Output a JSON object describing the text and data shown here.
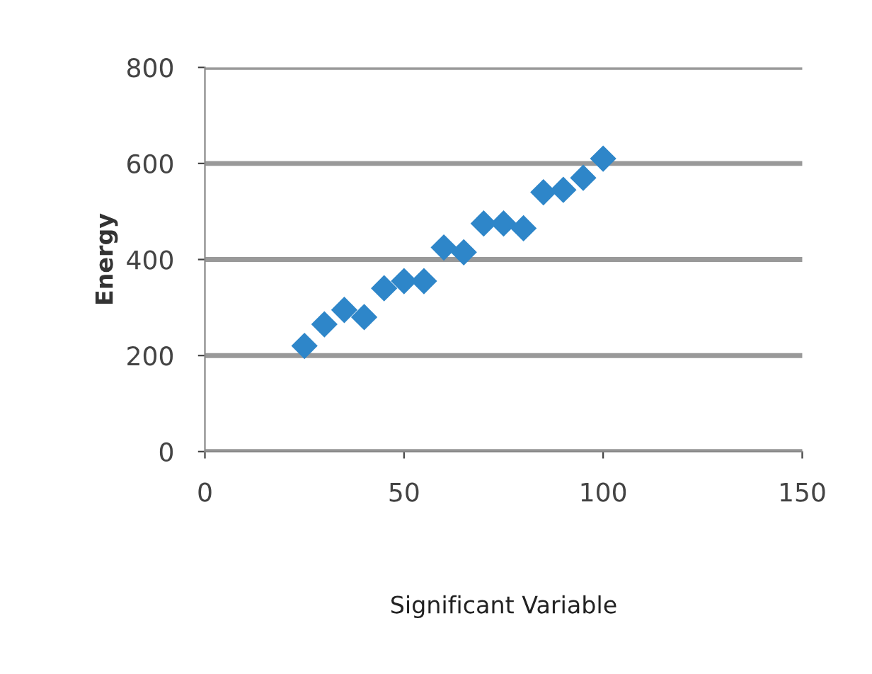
{
  "chart_data": {
    "type": "scatter",
    "xlabel": "Significant Variable",
    "ylabel": "Energy",
    "x": [
      25,
      30,
      35,
      40,
      45,
      50,
      55,
      60,
      65,
      70,
      75,
      80,
      85,
      90,
      95,
      100
    ],
    "values": [
      220,
      265,
      295,
      280,
      340,
      355,
      355,
      425,
      415,
      475,
      475,
      465,
      540,
      545,
      570,
      610
    ],
    "color": "#2e86c9",
    "marker": "diamond",
    "xlim": [
      0,
      150
    ],
    "xticks": [
      0,
      50,
      100,
      150
    ],
    "ylim": [
      0,
      800
    ],
    "yticks": [
      0,
      200,
      400,
      600,
      800
    ],
    "grid": "y"
  }
}
